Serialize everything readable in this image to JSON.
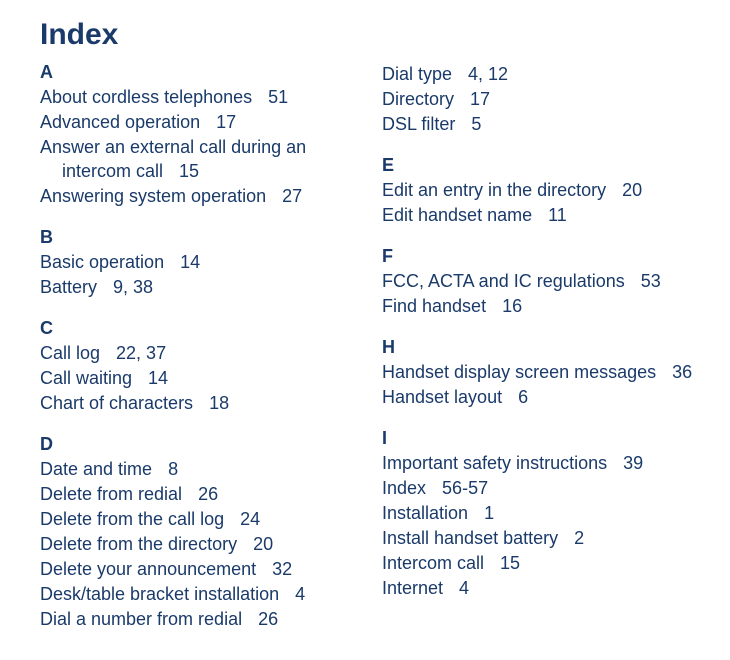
{
  "title": "Index",
  "text_color": "#1a3a6a",
  "background_color": "#ffffff",
  "font_family": "Arial, Helvetica, sans-serif",
  "title_fontsize": 30,
  "body_fontsize": 18,
  "columns": {
    "left": [
      {
        "letter": "A",
        "entries": [
          {
            "text": "About cordless telephones",
            "pages": "51"
          },
          {
            "text": "Advanced operation",
            "pages": "17"
          },
          {
            "text": "Answer an external call during an",
            "wrap_text": "intercom call",
            "pages": "15"
          },
          {
            "text": "Answering system operation",
            "pages": "27"
          }
        ]
      },
      {
        "letter": "B",
        "entries": [
          {
            "text": "Basic operation",
            "pages": "14"
          },
          {
            "text": "Battery",
            "pages": "9, 38"
          }
        ]
      },
      {
        "letter": "C",
        "entries": [
          {
            "text": "Call log",
            "pages": "22, 37"
          },
          {
            "text": "Call waiting",
            "pages": "14"
          },
          {
            "text": "Chart of characters",
            "pages": "18"
          }
        ]
      },
      {
        "letter": "D",
        "entries": [
          {
            "text": "Date and time",
            "pages": "8"
          },
          {
            "text": "Delete from redial",
            "pages": "26"
          },
          {
            "text": "Delete from the call log",
            "pages": "24"
          },
          {
            "text": "Delete from the directory",
            "pages": "20"
          },
          {
            "text": "Delete your announcement",
            "pages": "32"
          },
          {
            "text": "Desk/table bracket installation",
            "pages": "4"
          },
          {
            "text": "Dial a number from redial",
            "pages": "26"
          }
        ]
      }
    ],
    "right_cont": [
      {
        "text": "Dial type",
        "pages": "4, 12"
      },
      {
        "text": "Directory",
        "pages": "17"
      },
      {
        "text": "DSL filter",
        "pages": "5"
      }
    ],
    "right": [
      {
        "letter": "E",
        "entries": [
          {
            "text": "Edit an entry in the directory",
            "pages": "20"
          },
          {
            "text": "Edit handset name",
            "pages": "11"
          }
        ]
      },
      {
        "letter": "F",
        "entries": [
          {
            "text": "FCC, ACTA and IC regulations",
            "pages": "53"
          },
          {
            "text": "Find handset",
            "pages": "16"
          }
        ]
      },
      {
        "letter": "H",
        "entries": [
          {
            "text": "Handset display screen messages",
            "pages": "36"
          },
          {
            "text": "Handset layout",
            "pages": "6"
          }
        ]
      },
      {
        "letter": "I",
        "entries": [
          {
            "text": "Important safety instructions",
            "pages": "39"
          },
          {
            "text": "Index",
            "pages": "56-57"
          },
          {
            "text": "Installation",
            "pages": "1"
          },
          {
            "text": "Install handset battery",
            "pages": "2"
          },
          {
            "text": "Intercom call",
            "pages": "15"
          },
          {
            "text": "Internet",
            "pages": "4"
          }
        ]
      }
    ]
  }
}
